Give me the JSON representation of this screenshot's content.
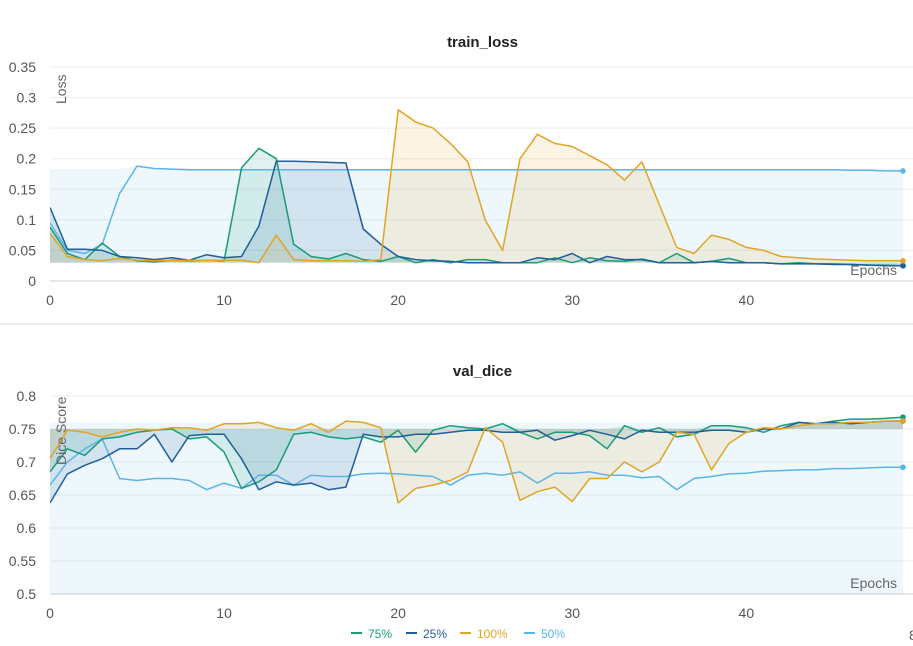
{
  "chart_data": [
    {
      "type": "line",
      "title": "train_loss",
      "xlabel": "Epochs",
      "ylabel": "Loss",
      "xlim": [
        0,
        49
      ],
      "ylim": [
        0,
        0.35
      ],
      "xticks": [
        "0",
        "10",
        "20",
        "30",
        "40"
      ],
      "yticks": [
        "0",
        "0.05",
        "0.1",
        "0.15",
        "0.2",
        "0.25",
        "0.3",
        "0.35"
      ],
      "grid": true,
      "series": [
        {
          "name": "50%",
          "color": "#5bb4e6",
          "band_min": 0.03,
          "band_max": 0.183,
          "values": [
            0.095,
            0.05,
            0.045,
            0.06,
            0.143,
            0.188,
            0.184,
            0.183,
            0.182,
            0.182,
            0.182,
            0.182,
            0.182,
            0.182,
            0.182,
            0.182,
            0.182,
            0.182,
            0.182,
            0.182,
            0.182,
            0.182,
            0.182,
            0.182,
            0.182,
            0.182,
            0.182,
            0.182,
            0.182,
            0.182,
            0.182,
            0.182,
            0.182,
            0.182,
            0.182,
            0.182,
            0.182,
            0.182,
            0.182,
            0.182,
            0.182,
            0.182,
            0.182,
            0.182,
            0.182,
            0.182,
            0.181,
            0.181,
            0.18,
            0.18
          ]
        },
        {
          "name": "75%",
          "color": "#1a9b7a",
          "values": [
            0.088,
            0.045,
            0.035,
            0.062,
            0.04,
            0.033,
            0.031,
            0.034,
            0.033,
            0.034,
            0.033,
            0.185,
            0.217,
            0.2,
            0.06,
            0.04,
            0.036,
            0.045,
            0.035,
            0.032,
            0.04,
            0.03,
            0.035,
            0.03,
            0.035,
            0.035,
            0.03,
            0.03,
            0.03,
            0.038,
            0.03,
            0.038,
            0.033,
            0.032,
            0.036,
            0.03,
            0.045,
            0.03,
            0.032,
            0.037,
            0.03,
            0.03,
            0.028,
            0.03,
            0.028,
            0.028,
            0.027,
            0.026,
            0.026,
            0.025
          ]
        },
        {
          "name": "25%",
          "color": "#1f5f9a",
          "values": [
            0.12,
            0.052,
            0.052,
            0.05,
            0.04,
            0.038,
            0.035,
            0.038,
            0.034,
            0.043,
            0.038,
            0.04,
            0.09,
            0.196,
            0.196,
            0.195,
            0.194,
            0.193,
            0.085,
            0.06,
            0.04,
            0.035,
            0.033,
            0.032,
            0.03,
            0.03,
            0.03,
            0.03,
            0.038,
            0.035,
            0.045,
            0.03,
            0.04,
            0.035,
            0.035,
            0.03,
            0.03,
            0.03,
            0.032,
            0.03,
            0.03,
            0.03,
            0.028,
            0.028,
            0.028,
            0.027,
            0.027,
            0.026,
            0.025,
            0.025
          ]
        },
        {
          "name": "100%",
          "color": "#e0a526",
          "values": [
            0.078,
            0.04,
            0.035,
            0.033,
            0.037,
            0.034,
            0.033,
            0.033,
            0.034,
            0.034,
            0.034,
            0.034,
            0.03,
            0.075,
            0.035,
            0.033,
            0.033,
            0.033,
            0.032,
            0.035,
            0.28,
            0.26,
            0.25,
            0.225,
            0.195,
            0.1,
            0.05,
            0.2,
            0.24,
            0.225,
            0.22,
            0.205,
            0.19,
            0.165,
            0.195,
            0.125,
            0.055,
            0.045,
            0.075,
            0.068,
            0.055,
            0.05,
            0.04,
            0.038,
            0.036,
            0.035,
            0.034,
            0.033,
            0.033,
            0.033
          ]
        }
      ]
    },
    {
      "type": "line",
      "title": "val_dice",
      "xlabel": "Epochs",
      "ylabel": "Dice Score",
      "xlim": [
        0,
        49
      ],
      "ylim": [
        0.5,
        0.8
      ],
      "xticks": [
        "0",
        "10",
        "20",
        "30",
        "40"
      ],
      "yticks": [
        "0.5",
        "0.55",
        "0.6",
        "0.65",
        "0.7",
        "0.75",
        "0.8"
      ],
      "grid": true,
      "series": [
        {
          "name": "50%",
          "color": "#5bb4e6",
          "band_min": 0.5,
          "band_max": 0.76,
          "values": [
            0.665,
            0.7,
            0.72,
            0.735,
            0.675,
            0.672,
            0.675,
            0.675,
            0.672,
            0.658,
            0.668,
            0.66,
            0.68,
            0.68,
            0.665,
            0.68,
            0.678,
            0.678,
            0.682,
            0.683,
            0.682,
            0.68,
            0.678,
            0.665,
            0.68,
            0.683,
            0.68,
            0.685,
            0.668,
            0.683,
            0.683,
            0.685,
            0.68,
            0.68,
            0.676,
            0.678,
            0.658,
            0.675,
            0.678,
            0.682,
            0.683,
            0.686,
            0.687,
            0.688,
            0.688,
            0.69,
            0.69,
            0.691,
            0.692,
            0.692
          ]
        },
        {
          "name": "75%",
          "color": "#1a9b7a",
          "values": [
            0.685,
            0.72,
            0.71,
            0.735,
            0.738,
            0.745,
            0.748,
            0.75,
            0.735,
            0.738,
            0.715,
            0.66,
            0.67,
            0.688,
            0.742,
            0.745,
            0.738,
            0.735,
            0.738,
            0.73,
            0.748,
            0.715,
            0.748,
            0.755,
            0.752,
            0.75,
            0.758,
            0.745,
            0.735,
            0.745,
            0.745,
            0.74,
            0.72,
            0.755,
            0.745,
            0.752,
            0.738,
            0.742,
            0.755,
            0.755,
            0.752,
            0.745,
            0.755,
            0.76,
            0.758,
            0.762,
            0.765,
            0.765,
            0.766,
            0.768
          ]
        },
        {
          "name": "25%",
          "color": "#1f5f9a",
          "values": [
            0.638,
            0.682,
            0.695,
            0.705,
            0.72,
            0.72,
            0.742,
            0.7,
            0.74,
            0.742,
            0.742,
            0.705,
            0.658,
            0.67,
            0.665,
            0.668,
            0.658,
            0.662,
            0.742,
            0.738,
            0.738,
            0.742,
            0.742,
            0.745,
            0.748,
            0.748,
            0.745,
            0.745,
            0.748,
            0.733,
            0.74,
            0.748,
            0.742,
            0.735,
            0.748,
            0.745,
            0.745,
            0.745,
            0.748,
            0.748,
            0.745,
            0.75,
            0.75,
            0.76,
            0.758,
            0.76,
            0.758,
            0.76,
            0.762,
            0.762
          ]
        },
        {
          "name": "100%",
          "color": "#e0a526",
          "values": [
            0.705,
            0.748,
            0.745,
            0.738,
            0.745,
            0.75,
            0.748,
            0.752,
            0.752,
            0.748,
            0.758,
            0.758,
            0.76,
            0.752,
            0.748,
            0.758,
            0.745,
            0.762,
            0.76,
            0.752,
            0.638,
            0.66,
            0.665,
            0.672,
            0.685,
            0.752,
            0.73,
            0.642,
            0.655,
            0.662,
            0.64,
            0.675,
            0.675,
            0.7,
            0.685,
            0.7,
            0.745,
            0.742,
            0.688,
            0.728,
            0.745,
            0.752,
            0.75,
            0.755,
            0.758,
            0.758,
            0.76,
            0.76,
            0.762,
            0.762
          ]
        }
      ]
    }
  ],
  "legend": {
    "items": [
      {
        "label": "75%",
        "color": "#1a9b7a"
      },
      {
        "label": "25%",
        "color": "#1f5f9a"
      },
      {
        "label": "100%",
        "color": "#e0a526"
      },
      {
        "label": "50%",
        "color": "#5bb4e6"
      }
    ]
  }
}
